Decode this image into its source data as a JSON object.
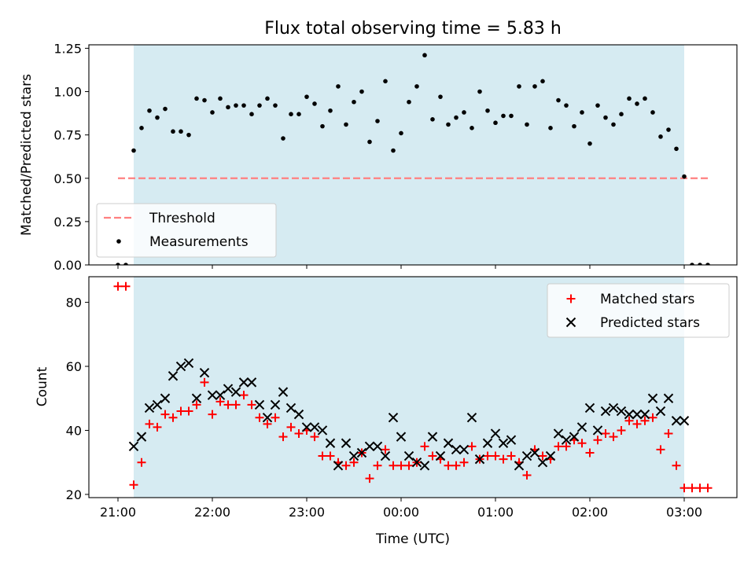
{
  "title": "Flux total observing time = 5.83 h",
  "colors": {
    "shade": "#add8e6",
    "threshold": "#ff8080",
    "matched": "#ff0000",
    "predicted": "#000000",
    "points": "#000000"
  },
  "chart_data": [
    {
      "type": "scatter",
      "ylabel": "Matched/Predicted stars",
      "ylim": [
        0,
        1.27
      ],
      "yticks": [
        {
          "v": 0,
          "label": "0.00"
        },
        {
          "v": 0.25,
          "label": "0.25"
        },
        {
          "v": 0.5,
          "label": "0.50"
        },
        {
          "v": 0.75,
          "label": "0.75"
        },
        {
          "v": 1.0,
          "label": "1.00"
        },
        {
          "v": 1.25,
          "label": "1.25"
        }
      ],
      "shaded_region": {
        "x_start": "21:10",
        "x_end": "03:00"
      },
      "threshold": {
        "name": "Threshold",
        "value": 0.5,
        "x_start": "21:00",
        "x_end": "03:15"
      },
      "legend": {
        "placement": "lower-left",
        "entries": [
          "Threshold",
          "Measurements"
        ]
      },
      "series": [
        {
          "name": "Measurements",
          "marker": "dot",
          "x": [
            "21:00",
            "21:05",
            "21:10",
            "21:15",
            "21:20",
            "21:25",
            "21:30",
            "21:35",
            "21:40",
            "21:45",
            "21:50",
            "21:55",
            "22:00",
            "22:05",
            "22:10",
            "22:15",
            "22:20",
            "22:25",
            "22:30",
            "22:35",
            "22:40",
            "22:45",
            "22:50",
            "22:55",
            "23:00",
            "23:05",
            "23:10",
            "23:15",
            "23:20",
            "23:25",
            "23:30",
            "23:35",
            "23:40",
            "23:45",
            "23:50",
            "23:55",
            "00:00",
            "00:05",
            "00:10",
            "00:15",
            "00:20",
            "00:25",
            "00:30",
            "00:35",
            "00:40",
            "00:45",
            "00:50",
            "00:55",
            "01:00",
            "01:05",
            "01:10",
            "01:15",
            "01:20",
            "01:25",
            "01:30",
            "01:35",
            "01:40",
            "01:45",
            "01:50",
            "01:55",
            "02:00",
            "02:05",
            "02:10",
            "02:15",
            "02:20",
            "02:25",
            "02:30",
            "02:35",
            "02:40",
            "02:45",
            "02:50",
            "02:55",
            "03:00",
            "03:05",
            "03:10",
            "03:15"
          ],
          "values": [
            0.0,
            0.0,
            0.66,
            0.79,
            0.89,
            0.85,
            0.9,
            0.77,
            0.77,
            0.75,
            0.96,
            0.95,
            0.88,
            0.96,
            0.91,
            0.92,
            0.92,
            0.87,
            0.92,
            0.96,
            0.92,
            0.73,
            0.87,
            0.87,
            0.97,
            0.93,
            0.8,
            0.89,
            1.03,
            0.81,
            0.94,
            1.0,
            0.71,
            0.83,
            1.06,
            0.66,
            0.76,
            0.94,
            1.03,
            1.21,
            0.84,
            0.97,
            0.81,
            0.85,
            0.88,
            0.79,
            1.0,
            0.89,
            0.82,
            0.86,
            0.86,
            1.03,
            0.81,
            1.03,
            1.06,
            0.79,
            0.95,
            0.92,
            0.8,
            0.88,
            0.7,
            0.92,
            0.85,
            0.81,
            0.87,
            0.96,
            0.93,
            0.96,
            0.88,
            0.74,
            0.78,
            0.67,
            0.51,
            0.0,
            0.0,
            0.0
          ]
        }
      ]
    },
    {
      "type": "scatter",
      "ylabel": "Count",
      "xlabel": "Time (UTC)",
      "ylim": [
        19,
        88
      ],
      "yticks": [
        {
          "v": 20,
          "label": "20"
        },
        {
          "v": 40,
          "label": "40"
        },
        {
          "v": 60,
          "label": "60"
        },
        {
          "v": 80,
          "label": "80"
        }
      ],
      "xticks": [
        "21:00",
        "22:00",
        "23:00",
        "00:00",
        "01:00",
        "02:00",
        "03:00"
      ],
      "shaded_region": {
        "x_start": "21:10",
        "x_end": "03:00"
      },
      "legend": {
        "placement": "upper-right",
        "entries": [
          "Matched stars",
          "Predicted stars"
        ]
      },
      "series": [
        {
          "name": "Matched stars",
          "marker": "plus",
          "x": [
            "21:00",
            "21:05",
            "21:10",
            "21:15",
            "21:20",
            "21:25",
            "21:30",
            "21:35",
            "21:40",
            "21:45",
            "21:50",
            "21:55",
            "22:00",
            "22:05",
            "22:10",
            "22:15",
            "22:20",
            "22:25",
            "22:30",
            "22:35",
            "22:40",
            "22:45",
            "22:50",
            "22:55",
            "23:00",
            "23:05",
            "23:10",
            "23:15",
            "23:20",
            "23:25",
            "23:30",
            "23:35",
            "23:40",
            "23:45",
            "23:50",
            "23:55",
            "00:00",
            "00:05",
            "00:10",
            "00:15",
            "00:20",
            "00:25",
            "00:30",
            "00:35",
            "00:40",
            "00:45",
            "00:50",
            "00:55",
            "01:00",
            "01:05",
            "01:10",
            "01:15",
            "01:20",
            "01:25",
            "01:30",
            "01:35",
            "01:40",
            "01:45",
            "01:50",
            "01:55",
            "02:00",
            "02:05",
            "02:10",
            "02:15",
            "02:20",
            "02:25",
            "02:30",
            "02:35",
            "02:40",
            "02:45",
            "02:50",
            "02:55",
            "03:00",
            "03:05",
            "03:10",
            "03:15"
          ],
          "values": [
            85,
            85,
            23,
            30,
            42,
            41,
            45,
            44,
            46,
            46,
            48,
            55,
            45,
            49,
            48,
            48,
            51,
            48,
            44,
            42,
            44,
            38,
            41,
            39,
            40,
            38,
            32,
            32,
            30,
            29,
            30,
            33,
            25,
            29,
            34,
            29,
            29,
            29,
            30,
            35,
            32,
            31,
            29,
            29,
            30,
            35,
            31,
            32,
            32,
            31,
            32,
            30,
            26,
            34,
            32,
            31,
            35,
            35,
            37,
            36,
            33,
            37,
            39,
            38,
            40,
            43,
            42,
            43,
            44,
            34,
            39,
            29,
            22,
            22,
            22,
            22
          ]
        },
        {
          "name": "Predicted stars",
          "marker": "x",
          "x": [
            "21:10",
            "21:15",
            "21:20",
            "21:25",
            "21:30",
            "21:35",
            "21:40",
            "21:45",
            "21:50",
            "21:55",
            "22:00",
            "22:05",
            "22:10",
            "22:15",
            "22:20",
            "22:25",
            "22:30",
            "22:35",
            "22:40",
            "22:45",
            "22:50",
            "22:55",
            "23:00",
            "23:05",
            "23:10",
            "23:15",
            "23:20",
            "23:25",
            "23:30",
            "23:35",
            "23:40",
            "23:45",
            "23:50",
            "23:55",
            "00:00",
            "00:05",
            "00:10",
            "00:15",
            "00:20",
            "00:25",
            "00:30",
            "00:35",
            "00:40",
            "00:45",
            "00:50",
            "00:55",
            "01:00",
            "01:05",
            "01:10",
            "01:15",
            "01:20",
            "01:25",
            "01:30",
            "01:35",
            "01:40",
            "01:45",
            "01:50",
            "01:55",
            "02:00",
            "02:05",
            "02:10",
            "02:15",
            "02:20",
            "02:25",
            "02:30",
            "02:35",
            "02:40",
            "02:45",
            "02:50",
            "02:55",
            "03:00"
          ],
          "values": [
            35,
            38,
            47,
            48,
            50,
            57,
            60,
            61,
            50,
            58,
            51,
            51,
            53,
            52,
            55,
            55,
            48,
            44,
            48,
            52,
            47,
            45,
            41,
            41,
            40,
            36,
            29,
            36,
            32,
            33,
            35,
            35,
            32,
            44,
            38,
            32,
            30,
            29,
            38,
            32,
            36,
            34,
            34,
            44,
            31,
            36,
            39,
            36,
            37,
            29,
            32,
            33,
            30,
            32,
            39,
            37,
            38,
            41,
            47,
            40,
            46,
            47,
            46,
            45,
            45,
            45,
            50,
            46,
            50,
            43,
            43
          ]
        }
      ]
    }
  ]
}
